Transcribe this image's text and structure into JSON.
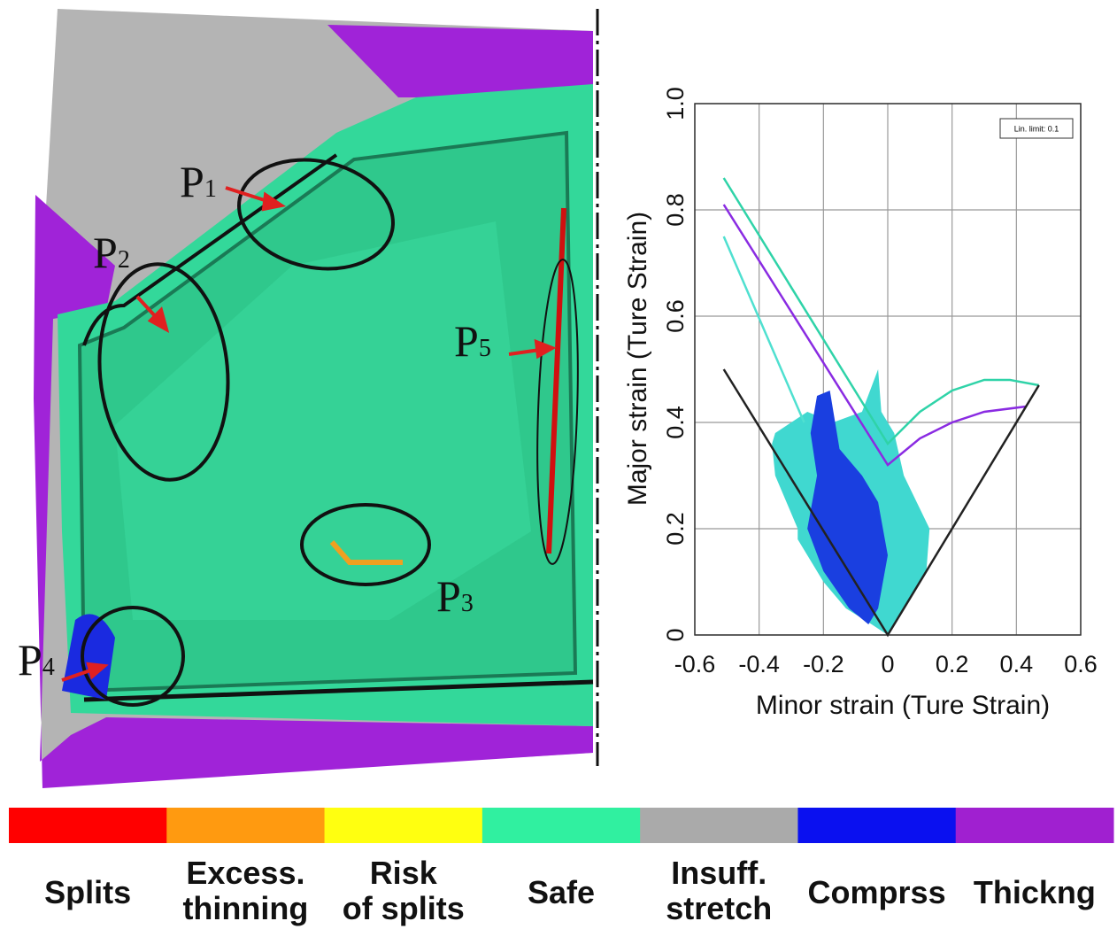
{
  "chart_data": {
    "type": "line",
    "x_label": "Minor strain (Ture Strain)",
    "y_label": "Major strain (Ture Strain)",
    "annotation": "Lin. limit: 0.1",
    "xlim": [
      -0.6,
      0.6
    ],
    "xticks": [
      -0.6,
      -0.4,
      -0.2,
      0,
      0.2,
      0.4,
      0.6
    ],
    "ylim": [
      0,
      1
    ],
    "yticks": [
      0,
      0.2,
      0.4,
      0.6,
      0.8,
      {
        "value": 1,
        "label": "1.0"
      }
    ],
    "grid": true,
    "series": [
      {
        "style": "cloud",
        "color": "#40d8d0",
        "x": [
          -0.35,
          -0.25,
          -0.17,
          -0.08,
          -0.03,
          -0.02,
          0.02,
          0.05,
          0.13,
          0.12,
          0.05,
          0,
          -0.05,
          -0.13,
          -0.2,
          -0.28,
          -0.28,
          -0.35,
          -0.36
        ],
        "y": [
          0.38,
          0.42,
          0.4,
          0.42,
          0.5,
          0.42,
          0.38,
          0.3,
          0.2,
          0.12,
          0.05,
          0,
          0.02,
          0.05,
          0.1,
          0.18,
          0.2,
          0.3,
          0.36
        ]
      },
      {
        "style": "cloud",
        "color": "#1a3fe0",
        "x": [
          -0.22,
          -0.18,
          -0.15,
          -0.08,
          -0.03,
          0,
          -0.03,
          -0.06,
          -0.12,
          -0.2,
          -0.25,
          -0.22,
          -0.24
        ],
        "y": [
          0.45,
          0.46,
          0.35,
          0.3,
          0.25,
          0.15,
          0.05,
          0.02,
          0.05,
          0.12,
          0.2,
          0.3,
          0.38
        ]
      },
      {
        "style": "line",
        "color": "#2fd3a8",
        "x": [
          -0.51,
          0,
          0.1,
          0.2,
          0.3,
          0.38,
          0.47
        ],
        "y": [
          0.86,
          0.36,
          0.42,
          0.46,
          0.48,
          0.48,
          0.47
        ]
      },
      {
        "style": "line",
        "color": "#8a2be2",
        "x": [
          -0.51,
          0,
          0.1,
          0.2,
          0.3,
          0.43
        ],
        "y": [
          0.81,
          0.32,
          0.37,
          0.4,
          0.42,
          0.43
        ]
      },
      {
        "style": "line",
        "color": "#4fe0d0",
        "x": [
          -0.51,
          -0.26
        ],
        "y": [
          0.75,
          0.4
        ]
      },
      {
        "style": "line",
        "color": "#222222",
        "x": [
          -0.51,
          0,
          0.47
        ],
        "y": [
          0.5,
          0,
          0.47
        ]
      }
    ]
  },
  "simulation": {
    "labels": [
      {
        "text": "P",
        "subscript": "1"
      },
      {
        "text": "P",
        "subscript": "2"
      },
      {
        "text": "P",
        "subscript": "3"
      },
      {
        "text": "P",
        "subscript": "4"
      },
      {
        "text": "P",
        "subscript": "5"
      }
    ]
  },
  "legend": {
    "items": [
      {
        "color": "#ff0000",
        "label": [
          "Splits"
        ]
      },
      {
        "color": "#ff9a10",
        "label": [
          "Excess.",
          "thinning"
        ]
      },
      {
        "color": "#ffff10",
        "label": [
          "Risk",
          "of splits"
        ]
      },
      {
        "color": "#30f0a0",
        "label": [
          "Safe"
        ]
      },
      {
        "color": "#aaaaaa",
        "label": [
          "Insuff.",
          "stretch"
        ]
      },
      {
        "color": "#0a10f0",
        "label": [
          "Comprss"
        ]
      },
      {
        "color": "#a020d0",
        "label": [
          "Thickng"
        ]
      }
    ]
  }
}
